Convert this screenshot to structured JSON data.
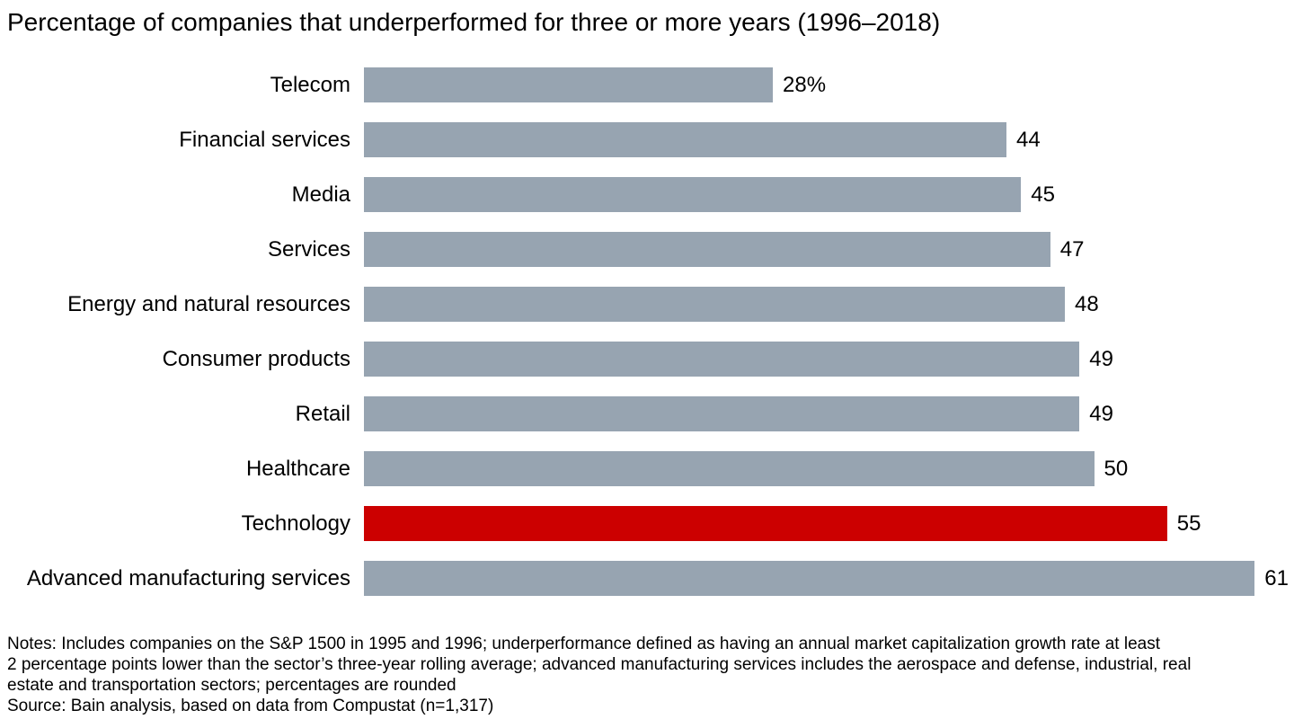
{
  "title": "Percentage of companies that underperformed for three or more years (1996–2018)",
  "chart_data": {
    "type": "bar",
    "orientation": "horizontal",
    "title": "Percentage of companies that underperformed for three or more years (1996–2018)",
    "xlabel": "",
    "ylabel": "",
    "axis_visible": false,
    "grid": false,
    "legend": "none",
    "xlim": [
      0,
      61
    ],
    "categories": [
      "Telecom",
      "Financial services",
      "Media",
      "Services",
      "Energy and natural resources",
      "Consumer products",
      "Retail",
      "Healthcare",
      "Technology",
      "Advanced manufacturing services"
    ],
    "values": [
      28,
      44,
      45,
      47,
      48,
      49,
      49,
      50,
      55,
      61
    ],
    "value_labels": [
      "28%",
      "44",
      "45",
      "47",
      "48",
      "49",
      "49",
      "50",
      "55",
      "61"
    ],
    "highlight_index": 8,
    "highlight_category": "Technology",
    "colors": {
      "bar": "#97A4B1",
      "highlight": "#CC0000",
      "text": "#000000",
      "background": "#FFFFFF"
    }
  },
  "notes": {
    "lines": [
      "Notes: Includes companies on the S&P 1500 in 1995 and 1996; underperformance defined as having an annual market capitalization growth rate at least",
      "2 percentage points lower than the sector’s three-year rolling average; advanced manufacturing services includes the aerospace and defense, industrial, real",
      "estate and transportation sectors; percentages are rounded"
    ],
    "source": "Source: Bain analysis, based on data from Compustat (n=1,317)"
  }
}
